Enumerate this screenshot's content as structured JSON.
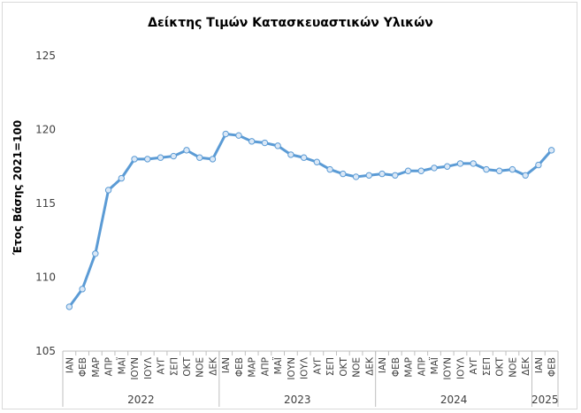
{
  "chart_data": {
    "type": "line",
    "title": "Δείκτης Τιμών Κατασκευαστικών Υλικών",
    "ylabel": "Έτος Βάσης 2021=100",
    "xlabel": "",
    "ylim": [
      105,
      125
    ],
    "yticks": [
      105,
      110,
      115,
      120,
      125
    ],
    "grid": false,
    "legend": "none",
    "line_color": "#5b9bd5",
    "months": [
      "ΙΑΝ",
      "ΦΕΒ",
      "ΜΑΡ",
      "ΑΠΡ",
      "ΜΑΪ",
      "ΙΟΥΝ",
      "ΙΟΥΛ",
      "ΑΥΓ",
      "ΣΕΠ",
      "ΟΚΤ",
      "ΝΟΕ",
      "ΔΕΚ",
      "ΙΑΝ",
      "ΦΕΒ",
      "ΜΑΡ",
      "ΑΠΡ",
      "ΜΑΪ",
      "ΙΟΥΝ",
      "ΙΟΥΛ",
      "ΑΥΓ",
      "ΣΕΠ",
      "ΟΚΤ",
      "ΝΟΕ",
      "ΔΕΚ",
      "ΙΑΝ",
      "ΦΕΒ",
      "ΜΑΡ",
      "ΑΠΡ",
      "ΜΑΪ",
      "ΙΟΥΝ",
      "ΙΟΥΛ",
      "ΑΥΓ",
      "ΣΕΠ",
      "ΟΚΤ",
      "ΝΟΕ",
      "ΔΕΚ",
      "ΙΑΝ",
      "ΦΕΒ"
    ],
    "years": [
      {
        "label": "2022",
        "count": 12
      },
      {
        "label": "2023",
        "count": 12
      },
      {
        "label": "2024",
        "count": 12
      },
      {
        "label": "2025",
        "count": 2
      }
    ],
    "values": [
      108.0,
      109.2,
      111.6,
      115.9,
      116.7,
      118.0,
      118.0,
      118.1,
      118.2,
      118.6,
      118.1,
      118.0,
      119.7,
      119.6,
      119.2,
      119.1,
      118.9,
      118.3,
      118.1,
      117.8,
      117.3,
      117.0,
      116.8,
      116.9,
      117.0,
      116.9,
      117.2,
      117.2,
      117.4,
      117.5,
      117.7,
      117.7,
      117.3,
      117.2,
      117.3,
      116.9,
      117.6,
      118.6
    ]
  }
}
